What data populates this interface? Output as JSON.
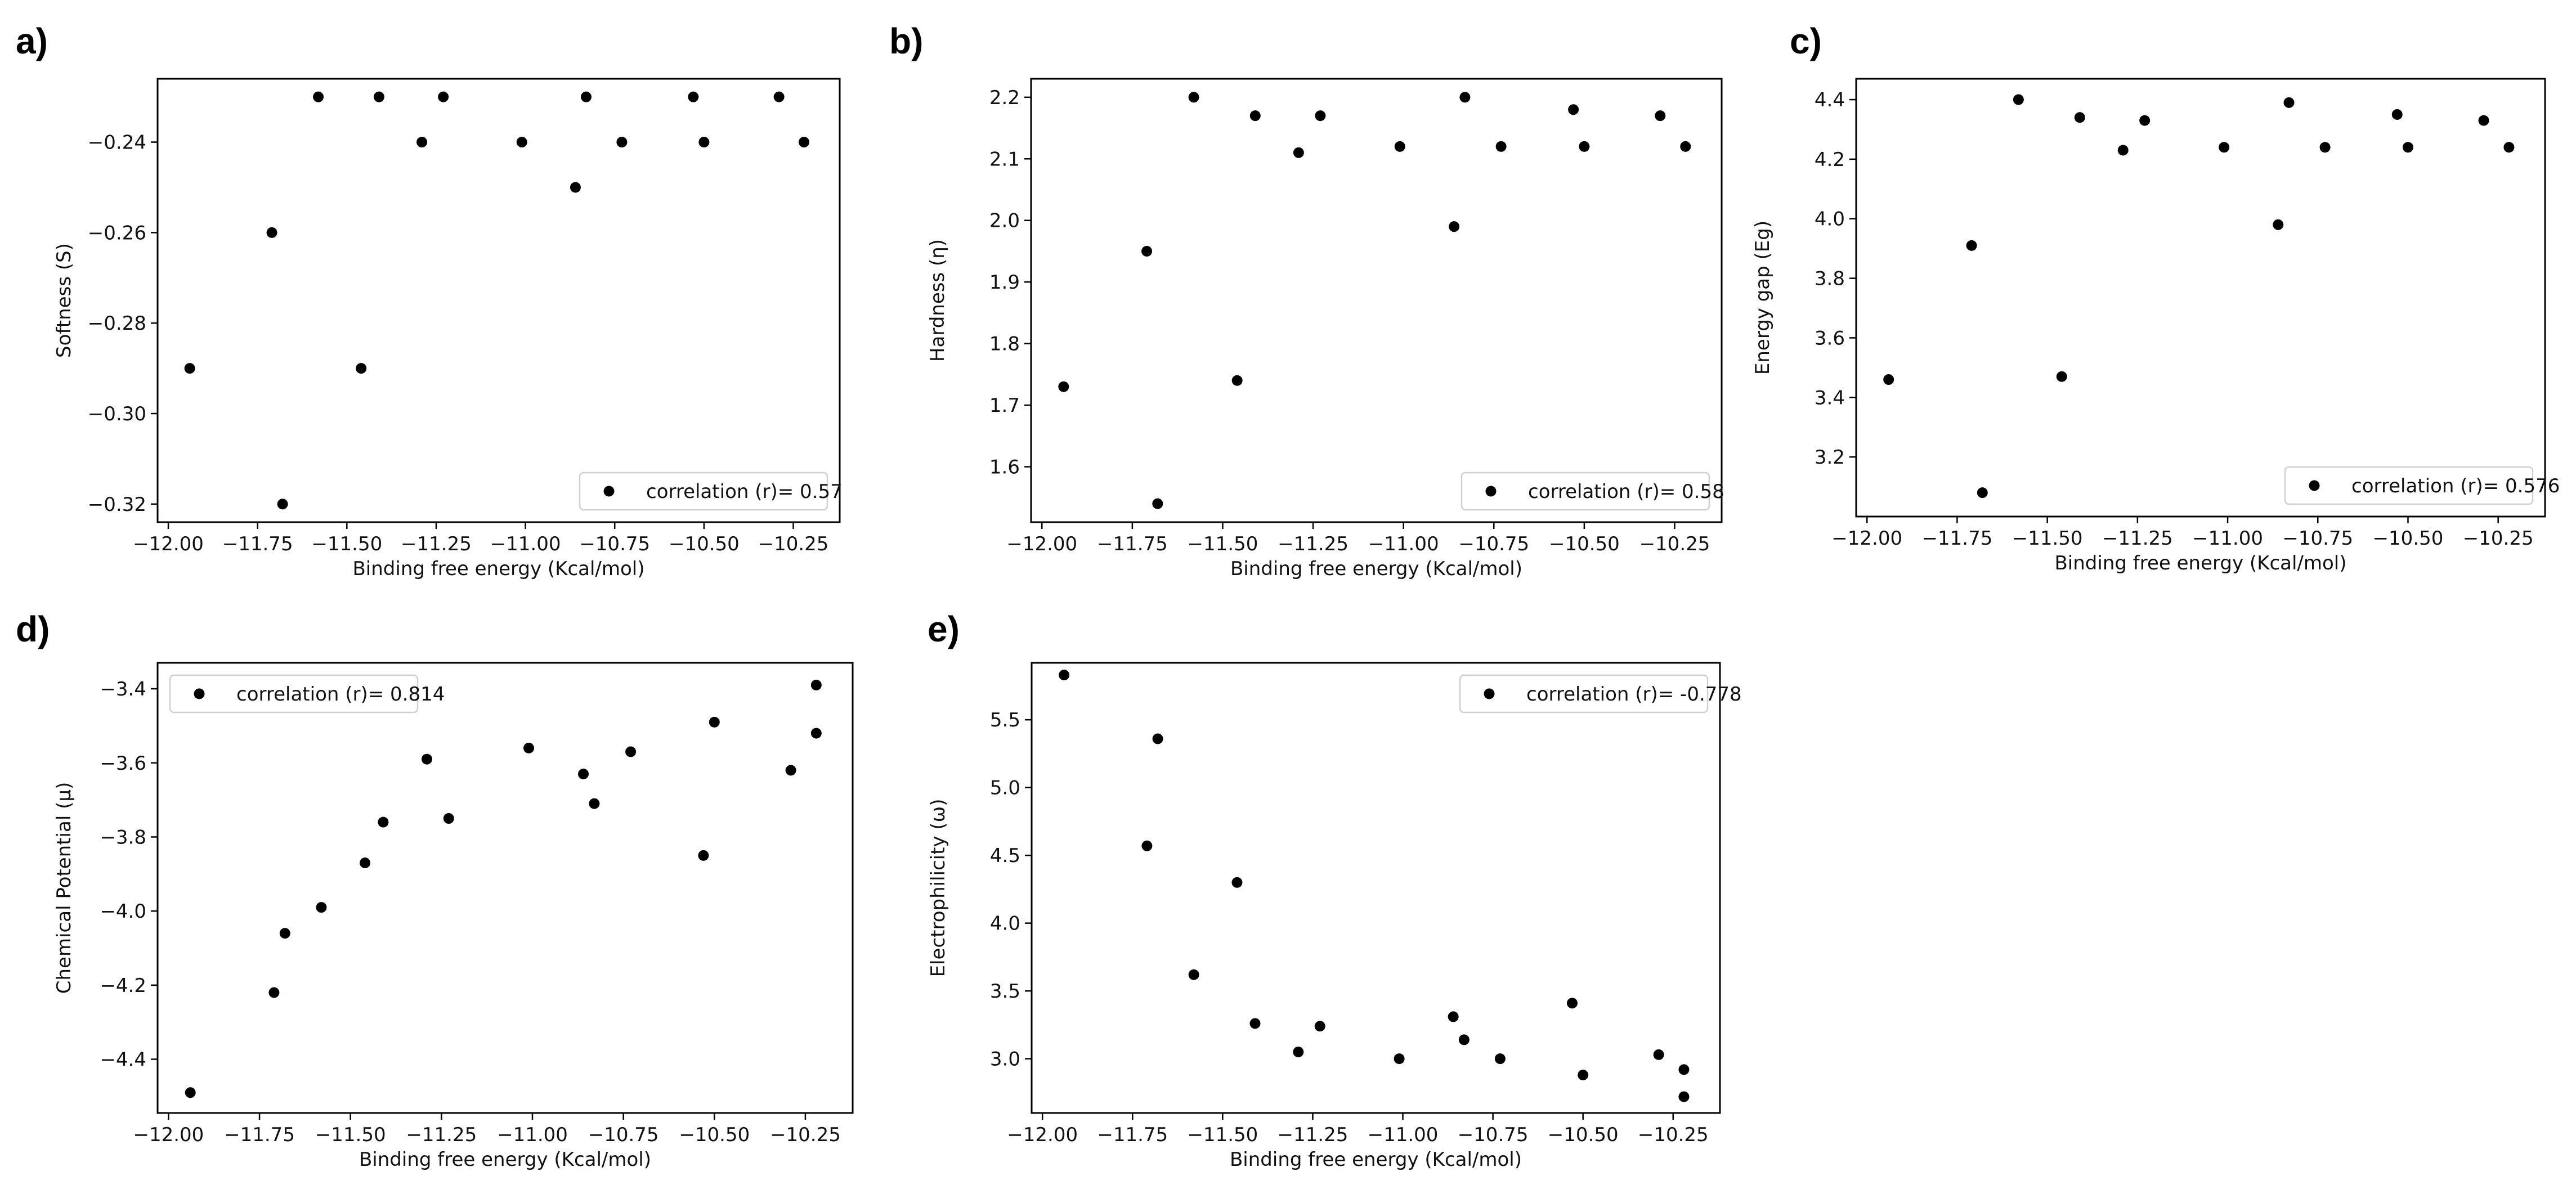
{
  "figure": {
    "marker_color": "#000000",
    "background": "#ffffff"
  },
  "chart_data": [
    {
      "type": "scatter",
      "panel": "a)",
      "title": "",
      "xlabel": "Binding free energy (Kcal/mol)",
      "ylabel": "Softness (S)",
      "xlim": [
        -12.03,
        -10.12
      ],
      "ylim": [
        -0.324,
        -0.226
      ],
      "xticks": [
        -12.0,
        -11.75,
        -11.5,
        -11.25,
        -11.0,
        -10.75,
        -10.5,
        -10.25
      ],
      "xtick_labels": [
        "−12.00",
        "−11.75",
        "−11.50",
        "−11.25",
        "−11.00",
        "−10.75",
        "−10.50",
        "−10.25"
      ],
      "yticks": [
        -0.32,
        -0.3,
        -0.28,
        -0.26,
        -0.24
      ],
      "ytick_labels": [
        "−0.32",
        "−0.30",
        "−0.28",
        "−0.26",
        "−0.24"
      ],
      "legend": {
        "label": "correlation (r)= 0.57",
        "position": "lower-right"
      },
      "grid": false,
      "points": {
        "x": [
          -11.94,
          -11.71,
          -11.68,
          -11.58,
          -11.46,
          -11.41,
          -11.29,
          -11.23,
          -11.01,
          -10.86,
          -10.83,
          -10.73,
          -10.53,
          -10.5,
          -10.29,
          -10.22
        ],
        "y": [
          -0.29,
          -0.26,
          -0.32,
          -0.23,
          -0.29,
          -0.23,
          -0.24,
          -0.23,
          -0.24,
          -0.25,
          -0.23,
          -0.24,
          -0.23,
          -0.24,
          -0.23,
          -0.24
        ]
      }
    },
    {
      "type": "scatter",
      "panel": "b)",
      "title": "",
      "xlabel": "Binding free energy (Kcal/mol)",
      "ylabel": "Hardness (η)",
      "xlim": [
        -12.03,
        -10.12
      ],
      "ylim": [
        1.51,
        2.23
      ],
      "xticks": [
        -12.0,
        -11.75,
        -11.5,
        -11.25,
        -11.0,
        -10.75,
        -10.5,
        -10.25
      ],
      "xtick_labels": [
        "−12.00",
        "−11.75",
        "−11.50",
        "−11.25",
        "−11.00",
        "−10.75",
        "−10.50",
        "−10.25"
      ],
      "yticks": [
        1.6,
        1.7,
        1.8,
        1.9,
        2.0,
        2.1,
        2.2
      ],
      "ytick_labels": [
        "1.6",
        "1.7",
        "1.8",
        "1.9",
        "2.0",
        "2.1",
        "2.2"
      ],
      "legend": {
        "label": "correlation (r)= 0.58",
        "position": "lower-right"
      },
      "grid": false,
      "points": {
        "x": [
          -11.94,
          -11.71,
          -11.68,
          -11.58,
          -11.46,
          -11.41,
          -11.29,
          -11.23,
          -11.01,
          -10.86,
          -10.83,
          -10.73,
          -10.53,
          -10.5,
          -10.29,
          -10.22
        ],
        "y": [
          1.73,
          1.95,
          1.54,
          2.2,
          1.74,
          2.17,
          2.11,
          2.17,
          2.12,
          1.99,
          2.2,
          2.12,
          2.18,
          2.12,
          2.17,
          2.12
        ]
      }
    },
    {
      "type": "scatter",
      "panel": "c)",
      "title": "",
      "xlabel": "Binding free energy (Kcal/mol)",
      "ylabel": "Energy gap (Eg)",
      "xlim": [
        -12.03,
        -10.12
      ],
      "ylim": [
        3.0,
        4.47
      ],
      "xticks": [
        -12.0,
        -11.75,
        -11.5,
        -11.25,
        -11.0,
        -10.75,
        -10.5,
        -10.25
      ],
      "xtick_labels": [
        "−12.00",
        "−11.75",
        "−11.50",
        "−11.25",
        "−11.00",
        "−10.75",
        "−10.50",
        "−10.25"
      ],
      "yticks": [
        3.2,
        3.4,
        3.6,
        3.8,
        4.0,
        4.2,
        4.4
      ],
      "ytick_labels": [
        "3.2",
        "3.4",
        "3.6",
        "3.8",
        "4.0",
        "4.2",
        "4.4"
      ],
      "legend": {
        "label": "correlation (r)= 0.576",
        "position": "lower-right"
      },
      "grid": false,
      "points": {
        "x": [
          -11.94,
          -11.71,
          -11.68,
          -11.58,
          -11.46,
          -11.41,
          -11.29,
          -11.23,
          -11.01,
          -10.86,
          -10.83,
          -10.73,
          -10.53,
          -10.5,
          -10.29,
          -10.22
        ],
        "y": [
          3.46,
          3.91,
          3.08,
          4.4,
          3.47,
          4.34,
          4.23,
          4.33,
          4.24,
          3.98,
          4.39,
          4.24,
          4.35,
          4.24,
          4.33,
          4.24
        ]
      }
    },
    {
      "type": "scatter",
      "panel": "d)",
      "title": "",
      "xlabel": "Binding free energy (Kcal/mol)",
      "ylabel": "Chemical Potential (μ)",
      "xlim": [
        -12.03,
        -10.12
      ],
      "ylim": [
        -4.545,
        -3.33
      ],
      "xticks": [
        -12.0,
        -11.75,
        -11.5,
        -11.25,
        -11.0,
        -10.75,
        -10.5,
        -10.25
      ],
      "xtick_labels": [
        "−12.00",
        "−11.75",
        "−11.50",
        "−11.25",
        "−11.00",
        "−10.75",
        "−10.50",
        "−10.25"
      ],
      "yticks": [
        -4.4,
        -4.2,
        -4.0,
        -3.8,
        -3.6,
        -3.4
      ],
      "ytick_labels": [
        "−4.4",
        "−4.2",
        "−4.0",
        "−3.8",
        "−3.6",
        "−3.4"
      ],
      "legend": {
        "label": "correlation (r)= 0.814",
        "position": "upper-left"
      },
      "grid": false,
      "points": {
        "x": [
          -11.94,
          -11.71,
          -11.68,
          -11.58,
          -11.46,
          -11.41,
          -11.29,
          -11.23,
          -11.01,
          -10.86,
          -10.83,
          -10.73,
          -10.53,
          -10.5,
          -10.29,
          -10.22,
          -10.22
        ],
        "y": [
          -4.49,
          -4.22,
          -4.06,
          -3.99,
          -3.87,
          -3.76,
          -3.59,
          -3.75,
          -3.56,
          -3.63,
          -3.71,
          -3.57,
          -3.85,
          -3.49,
          -3.62,
          -3.39,
          -3.52
        ]
      }
    },
    {
      "type": "scatter",
      "panel": "e)",
      "title": "",
      "xlabel": "Binding free energy (Kcal/mol)",
      "ylabel": "Electrophilicity (ω)",
      "xlim": [
        -12.03,
        -10.12
      ],
      "ylim": [
        2.6,
        5.92
      ],
      "xticks": [
        -12.0,
        -11.75,
        -11.5,
        -11.25,
        -11.0,
        -10.75,
        -10.5,
        -10.25
      ],
      "xtick_labels": [
        "−12.00",
        "−11.75",
        "−11.50",
        "−11.25",
        "−11.00",
        "−10.75",
        "−10.50",
        "−10.25"
      ],
      "yticks": [
        3.0,
        3.5,
        4.0,
        4.5,
        5.0,
        5.5
      ],
      "ytick_labels": [
        "3.0",
        "3.5",
        "4.0",
        "4.5",
        "5.0",
        "5.5"
      ],
      "legend": {
        "label": "correlation (r)= -0.778",
        "position": "upper-right"
      },
      "grid": false,
      "points": {
        "x": [
          -11.94,
          -11.71,
          -11.68,
          -11.58,
          -11.46,
          -11.41,
          -11.29,
          -11.23,
          -11.01,
          -10.86,
          -10.83,
          -10.73,
          -10.53,
          -10.5,
          -10.29,
          -10.22,
          -10.22
        ],
        "y": [
          5.83,
          4.57,
          5.36,
          3.62,
          4.3,
          3.26,
          3.05,
          3.24,
          3.0,
          3.31,
          3.14,
          3.0,
          3.41,
          2.88,
          3.03,
          2.92,
          2.72
        ]
      }
    }
  ]
}
